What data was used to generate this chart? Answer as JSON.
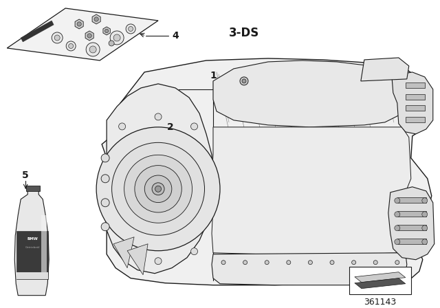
{
  "bg_color": "#ffffff",
  "line_color": "#1a1a1a",
  "part_number": "361143",
  "label_3ds": "3-DS",
  "font_size_label": 10,
  "font_size_3ds": 12,
  "font_size_num": 9
}
